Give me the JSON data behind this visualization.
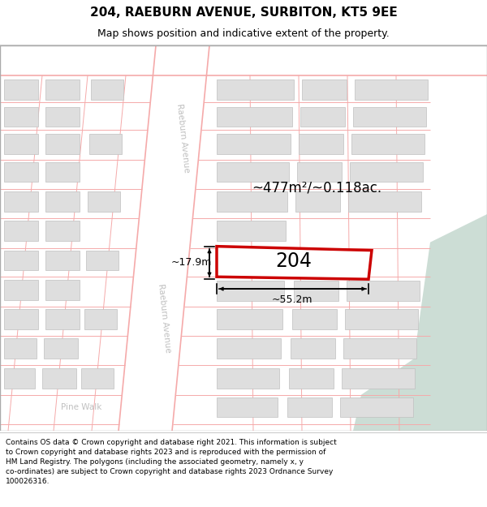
{
  "title": "204, RAEBURN AVENUE, SURBITON, KT5 9EE",
  "subtitle": "Map shows position and indicative extent of the property.",
  "footer": "Contains OS data © Crown copyright and database right 2021. This information is subject\nto Crown copyright and database rights 2023 and is reproduced with the permission of\nHM Land Registry. The polygons (including the associated geometry, namely x, y\nco-ordinates) are subject to Crown copyright and database rights 2023 Ordnance Survey\n100026316.",
  "bg_color": "#ffffff",
  "map_bg": "#f0f0f0",
  "building_color": "#dedede",
  "building_edge": "#c0c0c0",
  "street_line_color": "#f5aaaa",
  "road_color": "#ffffff",
  "highlight_color": "#cc0000",
  "highlight_fill": "#ffffff",
  "green_color": "#ccddd5",
  "road_label_color": "#c0c0c0",
  "area_text": "~477m²/~0.118ac.",
  "label_204": "204",
  "dim_width": "~55.2m",
  "dim_height": "~17.9m",
  "pine_walk": "Pine Walk",
  "raeburn1": "Raeburn Avenue",
  "raeburn2": "Raeburn Avenue"
}
